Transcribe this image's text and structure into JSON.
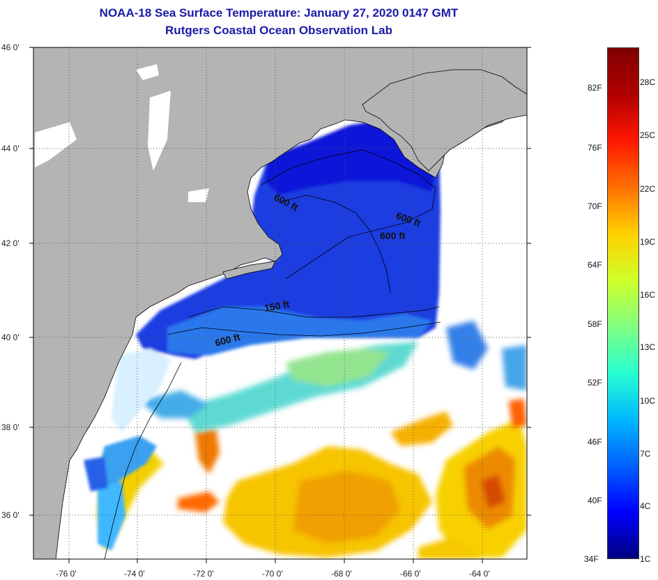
{
  "title_line1": "NOAA-18 Sea Surface Temperature:  January 27, 2020 0147 GMT",
  "title_line2": "Rutgers Coastal Ocean Observation Lab",
  "lat_labels": [
    "46 0'",
    "44 0'",
    "42 0'",
    "40 0'",
    "38 0'",
    "36 0'"
  ],
  "lat_values": [
    46,
    44,
    42,
    40,
    38,
    36
  ],
  "lon_labels": [
    "-76 0'",
    "-74 0'",
    "-72 0'",
    "-70 0'",
    "-68 0'",
    "-66 0'",
    "-64 0'"
  ],
  "lon_values": [
    -76,
    -74,
    -72,
    -70,
    -68,
    -66,
    -64
  ],
  "contour_labels": [
    "600 ft",
    "600 ft",
    "600 ft",
    "150 ft",
    "600 ft"
  ],
  "colorbar": {
    "fahrenheit": [
      "82F",
      "76F",
      "70F",
      "64F",
      "58F",
      "52F",
      "46F",
      "40F",
      "34F"
    ],
    "celsius": [
      "28C",
      "25C",
      "22C",
      "19C",
      "16C",
      "13C",
      "10C",
      "7C",
      "4C",
      "1C"
    ],
    "colors": [
      "#00007f",
      "#0000ff",
      "#0060ff",
      "#00b8ff",
      "#28ffd0",
      "#80ff80",
      "#d0ff28",
      "#ffd000",
      "#ff7000",
      "#ff1800",
      "#b00000",
      "#800000"
    ]
  },
  "colors": {
    "land": "#b4b4b4",
    "title": "#1a1aa8",
    "cloud": "#ffffff"
  }
}
